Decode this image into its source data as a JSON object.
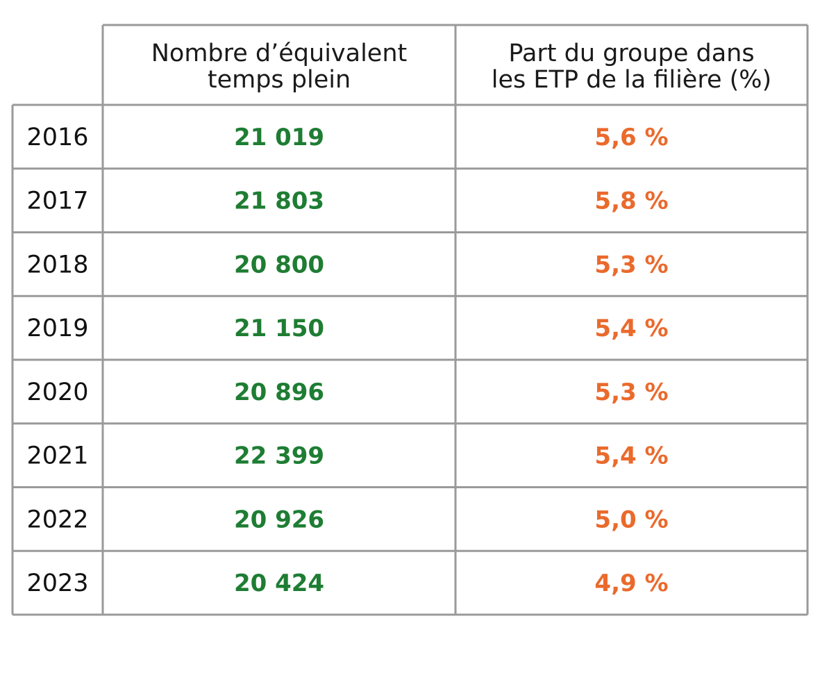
{
  "chart_data": {
    "type": "table",
    "columns": [
      "",
      "Nombre d’équivalent temps plein",
      "Part du groupe dans les ETP de la filière  (%)"
    ],
    "header_lines": [
      [
        "Nombre d’équivalent",
        "temps plein"
      ],
      [
        "Part du groupe dans",
        "les ETP de la filière  (%)"
      ]
    ],
    "rows": [
      {
        "year": "2016",
        "etp": "21 019",
        "share": "5,6 %"
      },
      {
        "year": "2017",
        "etp": "21 803",
        "share": "5,8 %"
      },
      {
        "year": "2018",
        "etp": "20 800",
        "share": "5,3 %"
      },
      {
        "year": "2019",
        "etp": "21 150",
        "share": "5,4 %"
      },
      {
        "year": "2020",
        "etp": "20 896",
        "share": "5,3 %"
      },
      {
        "year": "2021",
        "etp": "22 399",
        "share": "5,4 %"
      },
      {
        "year": "2022",
        "etp": "20 926",
        "share": "5,0 %"
      },
      {
        "year": "2023",
        "etp": "20 424",
        "share": "4,9 %"
      }
    ],
    "colors": {
      "etp": "#1e7d33",
      "share": "#ea6a2c",
      "grid": "#9a9a9a",
      "text": "#1a1a1a"
    }
  }
}
